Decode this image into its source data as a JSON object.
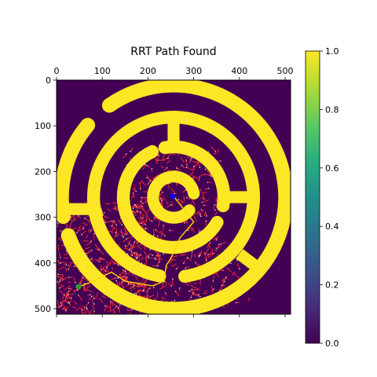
{
  "chart_data": {
    "type": "heatmap",
    "title": "RRT Path Found",
    "xlabel": "",
    "ylabel": "",
    "xlim": [
      0,
      512
    ],
    "ylim": [
      512,
      0
    ],
    "x_ticks": [
      0,
      100,
      200,
      300,
      400,
      500
    ],
    "y_ticks": [
      0,
      100,
      200,
      300,
      400,
      500
    ],
    "x_tick_position": "top",
    "colormap": "viridis",
    "clim": [
      0,
      1
    ],
    "colorbar": {
      "ticks": [
        "0.0",
        "0.2",
        "0.4",
        "0.6",
        "0.8",
        "1.0"
      ],
      "values": [
        0,
        0.2,
        0.4,
        0.6,
        0.8,
        1.0
      ]
    },
    "maze": {
      "center": [
        256,
        256
      ],
      "background_value": 0,
      "wall_value": 1,
      "rings": [
        {
          "radius": 245,
          "width": 32,
          "gaps_deg": [
            [
              190,
              200
            ],
            [
              125,
              140
            ]
          ]
        },
        {
          "radius": 175,
          "width": 28,
          "gaps_deg": [
            [
              260,
              278
            ]
          ]
        },
        {
          "radius": 110,
          "width": 28,
          "gaps_deg": [
            [
              100,
              115
            ],
            [
              330,
              350
            ]
          ]
        },
        {
          "radius": 45,
          "width": 26,
          "gaps_deg": [
            [
              -40,
              10
            ]
          ]
        }
      ],
      "spokes": [
        {
          "from": [
            256,
            90
          ],
          "to": [
            256,
            150
          ]
        },
        {
          "from": [
            20,
            282
          ],
          "to": [
            85,
            282
          ]
        },
        {
          "from": [
            85,
            282
          ],
          "to": [
            90,
            300
          ]
        },
        {
          "from": [
            400,
            380
          ],
          "to": [
            440,
            410
          ]
        },
        {
          "from": [
            370,
            256
          ],
          "to": [
            430,
            256
          ]
        }
      ]
    },
    "tree": {
      "edge_color": "#ff3030",
      "node_color": "#ffffff",
      "node_count": 900
    },
    "path": {
      "color": "#ffd400",
      "points": [
        [
          256,
          254
        ],
        [
          300,
          310
        ],
        [
          270,
          345
        ],
        [
          250,
          390
        ],
        [
          240,
          405
        ],
        [
          235,
          440
        ],
        [
          210,
          450
        ],
        [
          150,
          440
        ],
        [
          120,
          420
        ],
        [
          80,
          440
        ],
        [
          48,
          452
        ]
      ]
    },
    "start": {
      "x": 48,
      "y": 452,
      "color": "#2ca02c"
    },
    "goal": {
      "x": 254,
      "y": 254,
      "color": "#0000ff"
    }
  }
}
